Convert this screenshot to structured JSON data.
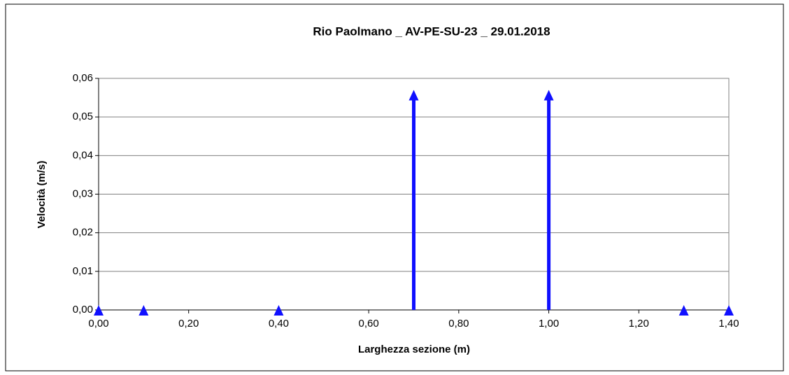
{
  "chart_data": {
    "type": "arrow",
    "title": "Rio Paolmano _ AV-PE-SU-23 _ 29.01.2018",
    "x_label": "Larghezza sezione (m)",
    "y_label": "Velocità (m/s)",
    "x": [
      0,
      0.1,
      0.4,
      0.7,
      1.0,
      1.3,
      1.4
    ],
    "values": [
      0,
      0,
      0,
      0.057,
      0.057,
      0,
      0
    ],
    "color": "#1010ff",
    "xlim": [
      0,
      1.4
    ],
    "ylim": [
      0,
      0.06
    ],
    "xticks": [
      {
        "value": 0,
        "label": "0,00"
      },
      {
        "value": 0.2,
        "label": "0,20"
      },
      {
        "value": 0.4,
        "label": "0,40"
      },
      {
        "value": 0.6,
        "label": "0,60"
      },
      {
        "value": 0.8,
        "label": "0,80"
      },
      {
        "value": 1.0,
        "label": "1,00"
      },
      {
        "value": 1.2,
        "label": "1,20"
      },
      {
        "value": 1.4,
        "label": "1,40"
      }
    ],
    "yticks": [
      {
        "value": 0,
        "label": "0,00"
      },
      {
        "value": 0.01,
        "label": "0,01"
      },
      {
        "value": 0.02,
        "label": "0,02"
      },
      {
        "value": 0.03,
        "label": "0,03"
      },
      {
        "value": 0.04,
        "label": "0,04"
      },
      {
        "value": 0.05,
        "label": "0,05"
      },
      {
        "value": 0.06,
        "label": "0,06"
      }
    ],
    "grid": true
  }
}
